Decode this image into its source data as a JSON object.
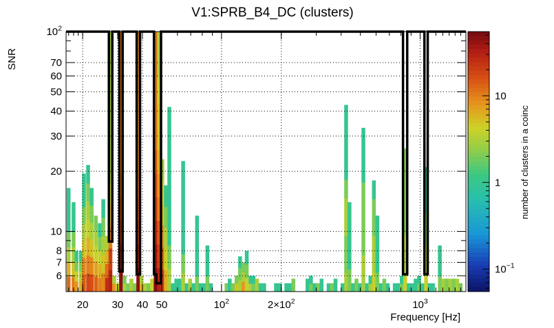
{
  "chart_data": {
    "type": "heatmap",
    "title": "V1:SPRB_B4_DC (clusters)",
    "xlabel": "Frequency [Hz]",
    "ylabel": "SNR",
    "zlabel": "number of clusters in a coinc",
    "x_scale": "log",
    "y_scale": "log",
    "z_scale": "log",
    "xlim": [
      16.5,
      1700
    ],
    "ylim": [
      5.0,
      100
    ],
    "zlim": [
      0.055,
      55
    ],
    "grid": true,
    "x_ticks": [
      {
        "value": 20,
        "label": "20"
      },
      {
        "value": 30,
        "label": "30"
      },
      {
        "value": 40,
        "label": "40"
      },
      {
        "value": 50,
        "label": "50"
      },
      {
        "value": 100,
        "label": "10",
        "sup": "2"
      },
      {
        "value": 200,
        "label": "2×10",
        "sup": "2"
      },
      {
        "value": 1000,
        "label": "10",
        "sup": "3"
      }
    ],
    "y_ticks": [
      {
        "value": 6,
        "label": "6"
      },
      {
        "value": 7,
        "label": "7"
      },
      {
        "value": 8,
        "label": "8"
      },
      {
        "value": 10,
        "label": "10"
      },
      {
        "value": 20,
        "label": "20"
      },
      {
        "value": 30,
        "label": "30"
      },
      {
        "value": 40,
        "label": "40"
      },
      {
        "value": 50,
        "label": "50"
      },
      {
        "value": 60,
        "label": "60"
      },
      {
        "value": 70,
        "label": "70"
      },
      {
        "value": 100,
        "label": "10",
        "sup": "2"
      }
    ],
    "z_ticks": [
      {
        "value": 0.1,
        "label": "10",
        "sup": "−1"
      },
      {
        "value": 1,
        "label": "1"
      },
      {
        "value": 10,
        "label": "10"
      }
    ],
    "columns": [
      {
        "f": 17.0,
        "snr_max": 16.5,
        "counts": [
          12,
          6,
          3,
          2,
          1,
          1,
          1
        ]
      },
      {
        "f": 18.0,
        "snr_max": 14.0,
        "counts": [
          10,
          5,
          3,
          2,
          1,
          1
        ]
      },
      {
        "f": 18.6,
        "snr_max": 8.0,
        "counts": [
          8,
          4,
          2,
          1
        ]
      },
      {
        "f": 19.6,
        "snr_max": 8.0,
        "counts": [
          6,
          3,
          2,
          1
        ]
      },
      {
        "f": 20.3,
        "snr_max": 19.5,
        "counts": [
          14,
          9,
          5,
          3,
          2,
          1,
          1
        ]
      },
      {
        "f": 21.3,
        "snr_max": 21.5,
        "counts": [
          18,
          10,
          6,
          4,
          3,
          2,
          1
        ]
      },
      {
        "f": 22.2,
        "snr_max": 16.5,
        "counts": [
          16,
          9,
          5,
          3,
          2,
          1
        ]
      },
      {
        "f": 23.3,
        "snr_max": 12.0,
        "counts": [
          13,
          7,
          4,
          3,
          2
        ]
      },
      {
        "f": 24.4,
        "snr_max": 11.0,
        "counts": [
          10,
          6,
          4,
          2,
          1
        ]
      },
      {
        "f": 25.4,
        "snr_max": 14.5,
        "counts": [
          9,
          5,
          3,
          2,
          1
        ]
      },
      {
        "f": 26.5,
        "snr_max": 9.5,
        "counts": [
          25,
          12,
          6,
          3
        ]
      },
      {
        "f": 27.6,
        "snr_max": 100,
        "counts": [
          30,
          20,
          10,
          6,
          4,
          3,
          3,
          3,
          3,
          3,
          3,
          3
        ]
      },
      {
        "f": 28.8,
        "snr_max": 6.0,
        "counts": [
          8,
          3
        ]
      },
      {
        "f": 29.9,
        "snr_max": 5.5,
        "counts": [
          4
        ]
      },
      {
        "f": 31.2,
        "snr_max": 100,
        "counts": [
          45,
          30,
          20,
          15,
          12,
          10,
          10,
          10,
          10,
          10,
          10
        ]
      },
      {
        "f": 32.5,
        "snr_max": 6.0,
        "counts": [
          3,
          2
        ]
      },
      {
        "f": 33.8,
        "snr_max": 5.5,
        "counts": [
          2
        ]
      },
      {
        "f": 35.2,
        "snr_max": 5.8,
        "counts": [
          3
        ]
      },
      {
        "f": 36.6,
        "snr_max": 5.5,
        "counts": [
          2
        ]
      },
      {
        "f": 38.1,
        "snr_max": 100,
        "counts": [
          45,
          30,
          20,
          15,
          12,
          10,
          10,
          10,
          10,
          10,
          10
        ]
      },
      {
        "f": 39.6,
        "snr_max": 6.0,
        "counts": [
          6,
          3
        ]
      },
      {
        "f": 41.3,
        "snr_max": 5.5,
        "counts": [
          3
        ]
      },
      {
        "f": 43.0,
        "snr_max": 5.5,
        "counts": [
          2
        ]
      },
      {
        "f": 44.7,
        "snr_max": 5.8,
        "counts": [
          4
        ]
      },
      {
        "f": 46.6,
        "snr_max": 100,
        "counts": [
          50,
          40,
          30,
          25,
          20,
          15,
          12,
          12,
          12,
          12,
          12
        ]
      },
      {
        "f": 48.4,
        "snr_max": 100,
        "counts": [
          30,
          20,
          15,
          10,
          8,
          6,
          5,
          5,
          4,
          3,
          3
        ]
      },
      {
        "f": 50.4,
        "snr_max": 23.0,
        "counts": [
          20,
          12,
          8,
          5,
          4,
          3
        ]
      },
      {
        "f": 52.5,
        "snr_max": 17.0,
        "counts": [
          6,
          4,
          3,
          2,
          1
        ]
      },
      {
        "f": 54.6,
        "snr_max": 42.0,
        "counts": [
          3,
          2,
          1,
          1,
          1,
          1,
          1,
          1
        ]
      },
      {
        "f": 56.9,
        "snr_max": 5.5,
        "counts": [
          1
        ]
      },
      {
        "f": 59.2,
        "snr_max": 5.8,
        "counts": [
          1
        ]
      },
      {
        "f": 61.6,
        "snr_max": 5.8,
        "counts": [
          1
        ]
      },
      {
        "f": 64.1,
        "snr_max": 22.5,
        "counts": [
          3,
          2,
          1,
          1,
          1,
          1,
          1
        ]
      },
      {
        "f": 66.8,
        "snr_max": 5.5,
        "counts": [
          1
        ]
      },
      {
        "f": 69.5,
        "snr_max": 5.8,
        "counts": [
          3
        ]
      },
      {
        "f": 72.3,
        "snr_max": 5.5,
        "counts": [
          1
        ]
      },
      {
        "f": 75.3,
        "snr_max": 12.0,
        "counts": [
          2,
          1,
          1,
          1,
          1
        ]
      },
      {
        "f": 78.4,
        "snr_max": 5.5,
        "counts": [
          1
        ]
      },
      {
        "f": 81.6,
        "snr_max": 5.5,
        "counts": [
          1
        ]
      },
      {
        "f": 84.9,
        "snr_max": 8.5,
        "counts": [
          2,
          1,
          1
        ]
      },
      {
        "f": 88.4,
        "snr_max": 5.5,
        "counts": [
          1
        ]
      },
      {
        "f": 106,
        "snr_max": 5.5,
        "counts": [
          2
        ]
      },
      {
        "f": 110,
        "snr_max": 5.8,
        "counts": [
          1
        ]
      },
      {
        "f": 114,
        "snr_max": 5.5,
        "counts": [
          2
        ]
      },
      {
        "f": 119,
        "snr_max": 6.0,
        "counts": [
          5,
          2
        ]
      },
      {
        "f": 124,
        "snr_max": 7.5,
        "counts": [
          3,
          2,
          1
        ]
      },
      {
        "f": 129,
        "snr_max": 7.0,
        "counts": [
          8,
          3,
          2
        ]
      },
      {
        "f": 134,
        "snr_max": 8.0,
        "counts": [
          4,
          2,
          1
        ]
      },
      {
        "f": 140,
        "snr_max": 6.0,
        "counts": [
          3,
          1
        ]
      },
      {
        "f": 145,
        "snr_max": 6.0,
        "counts": [
          2,
          1
        ]
      },
      {
        "f": 151,
        "snr_max": 5.8,
        "counts": [
          3
        ]
      },
      {
        "f": 157,
        "snr_max": 5.5,
        "counts": [
          1
        ]
      },
      {
        "f": 164,
        "snr_max": 5.5,
        "counts": [
          1
        ]
      },
      {
        "f": 188,
        "snr_max": 5.5,
        "counts": [
          1
        ]
      },
      {
        "f": 196,
        "snr_max": 5.5,
        "counts": [
          1
        ]
      },
      {
        "f": 212,
        "snr_max": 5.5,
        "counts": [
          1
        ]
      },
      {
        "f": 221,
        "snr_max": 5.5,
        "counts": [
          1
        ]
      },
      {
        "f": 230,
        "snr_max": 5.8,
        "counts": [
          2
        ]
      },
      {
        "f": 271,
        "snr_max": 5.8,
        "counts": [
          1
        ]
      },
      {
        "f": 282,
        "snr_max": 6.0,
        "counts": [
          2,
          1
        ]
      },
      {
        "f": 294,
        "snr_max": 5.5,
        "counts": [
          1
        ]
      },
      {
        "f": 306,
        "snr_max": 5.5,
        "counts": [
          2
        ]
      },
      {
        "f": 319,
        "snr_max": 5.8,
        "counts": [
          1
        ]
      },
      {
        "f": 346,
        "snr_max": 5.5,
        "counts": [
          1
        ]
      },
      {
        "f": 360,
        "snr_max": 5.5,
        "counts": [
          2
        ]
      },
      {
        "f": 375,
        "snr_max": 5.8,
        "counts": [
          1
        ]
      },
      {
        "f": 407,
        "snr_max": 5.5,
        "counts": [
          1
        ]
      },
      {
        "f": 424,
        "snr_max": 43.0,
        "counts": [
          3,
          2,
          2,
          3,
          3,
          2,
          1,
          1,
          1,
          1
        ]
      },
      {
        "f": 441,
        "snr_max": 14.0,
        "counts": [
          2,
          1,
          1,
          1
        ]
      },
      {
        "f": 459,
        "snr_max": 5.5,
        "counts": [
          1
        ]
      },
      {
        "f": 478,
        "snr_max": 5.8,
        "counts": [
          2
        ]
      },
      {
        "f": 498,
        "snr_max": 5.5,
        "counts": [
          1
        ]
      },
      {
        "f": 518,
        "snr_max": 33.0,
        "counts": [
          3,
          3,
          2,
          2,
          2,
          2,
          1,
          1,
          1
        ]
      },
      {
        "f": 540,
        "snr_max": 5.5,
        "counts": [
          1
        ]
      },
      {
        "f": 562,
        "snr_max": 6.0,
        "counts": [
          3,
          1
        ]
      },
      {
        "f": 585,
        "snr_max": 18.0,
        "counts": [
          4,
          3,
          3,
          2,
          2,
          1
        ]
      },
      {
        "f": 609,
        "snr_max": 12.0,
        "counts": [
          2,
          1,
          1,
          1
        ]
      },
      {
        "f": 634,
        "snr_max": 5.5,
        "counts": [
          1
        ]
      },
      {
        "f": 660,
        "snr_max": 5.8,
        "counts": [
          2
        ]
      },
      {
        "f": 687,
        "snr_max": 5.5,
        "counts": [
          1
        ]
      },
      {
        "f": 745,
        "snr_max": 5.5,
        "counts": [
          1
        ]
      },
      {
        "f": 776,
        "snr_max": 5.5,
        "counts": [
          1
        ]
      },
      {
        "f": 808,
        "snr_max": 6.0,
        "counts": [
          2,
          1
        ]
      },
      {
        "f": 841,
        "snr_max": 26.0,
        "counts": [
          4,
          3,
          3,
          3,
          2,
          2,
          2,
          2,
          2,
          2
        ]
      },
      {
        "f": 876,
        "snr_max": 5.5,
        "counts": [
          1
        ]
      },
      {
        "f": 912,
        "snr_max": 5.5,
        "counts": [
          1
        ]
      },
      {
        "f": 949,
        "snr_max": 5.8,
        "counts": [
          1
        ]
      },
      {
        "f": 988,
        "snr_max": 6.0,
        "counts": [
          2,
          1
        ]
      },
      {
        "f": 1029,
        "snr_max": 5.5,
        "counts": [
          1
        ]
      },
      {
        "f": 1071,
        "snr_max": 21.0,
        "counts": [
          4,
          3,
          3,
          2,
          2,
          1,
          1,
          1
        ]
      },
      {
        "f": 1115,
        "snr_max": 5.5,
        "counts": [
          1
        ]
      },
      {
        "f": 1161,
        "snr_max": 5.5,
        "counts": [
          1
        ]
      },
      {
        "f": 1257,
        "snr_max": 8.5,
        "counts": [
          2,
          1,
          1
        ]
      },
      {
        "f": 1308,
        "snr_max": 5.8,
        "counts": [
          3
        ]
      },
      {
        "f": 1362,
        "snr_max": 5.8,
        "counts": [
          2
        ]
      },
      {
        "f": 1418,
        "snr_max": 5.8,
        "counts": [
          3
        ]
      },
      {
        "f": 1476,
        "snr_max": 5.8,
        "counts": [
          2
        ]
      },
      {
        "f": 1537,
        "snr_max": 5.8,
        "counts": [
          3
        ]
      },
      {
        "f": 1600,
        "snr_max": 5.5,
        "counts": [
          2
        ]
      }
    ],
    "veto_outline": [
      [
        16.5,
        100
      ],
      [
        27.1,
        100
      ],
      [
        27.1,
        8.9
      ],
      [
        28.2,
        8.9
      ],
      [
        28.2,
        100
      ],
      [
        30.6,
        100
      ],
      [
        30.6,
        6.3
      ],
      [
        31.8,
        6.3
      ],
      [
        31.8,
        100
      ],
      [
        37.4,
        100
      ],
      [
        37.4,
        6.1
      ],
      [
        38.9,
        6.1
      ],
      [
        38.9,
        100
      ],
      [
        45.7,
        100
      ],
      [
        45.7,
        6.1
      ],
      [
        47.0,
        6.1
      ],
      [
        47.0,
        5.5
      ],
      [
        49.6,
        5.5
      ],
      [
        49.6,
        100
      ],
      [
        820,
        100
      ],
      [
        820,
        6.1
      ],
      [
        861,
        6.1
      ],
      [
        861,
        100
      ],
      [
        1051,
        100
      ],
      [
        1051,
        6.1
      ],
      [
        1092,
        6.1
      ],
      [
        1092,
        100
      ],
      [
        1700,
        100
      ]
    ]
  }
}
